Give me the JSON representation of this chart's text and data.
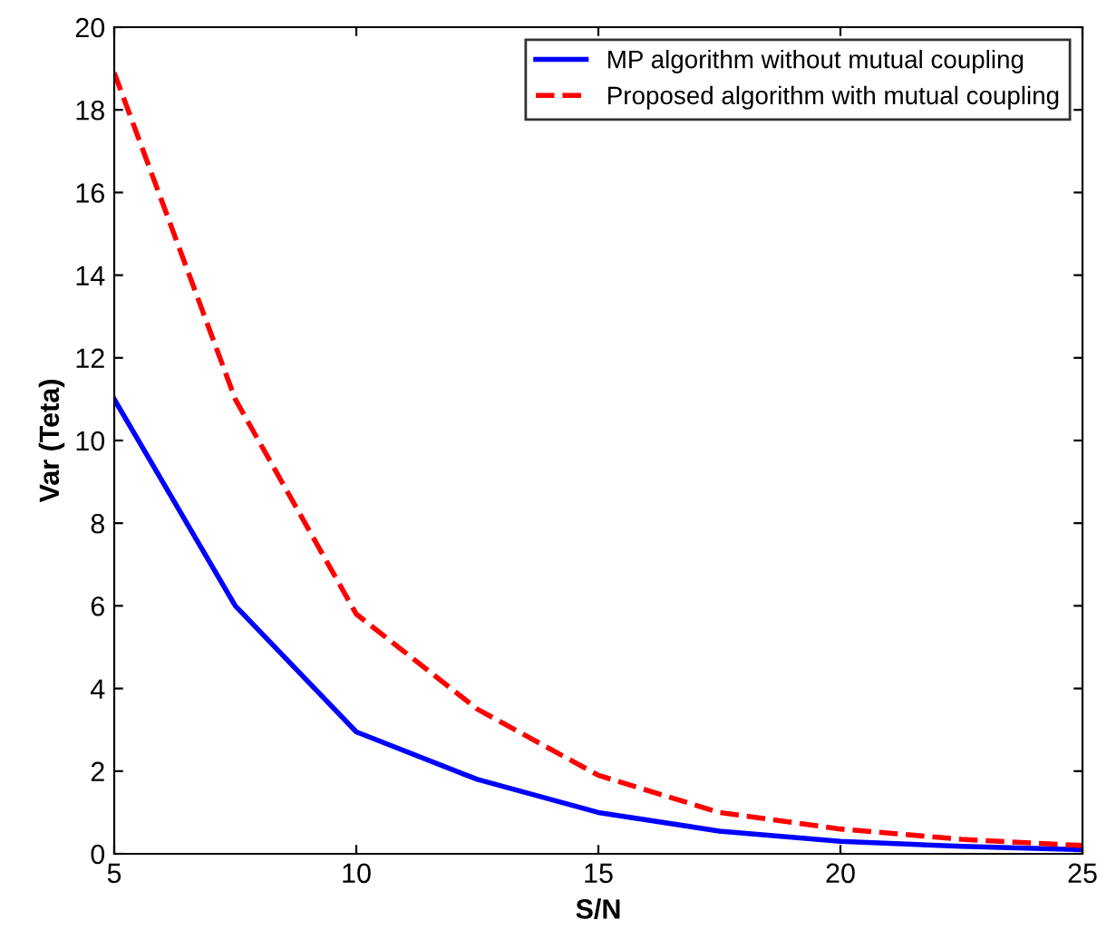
{
  "chart_data": {
    "type": "line",
    "xlabel": "S/N",
    "ylabel": "Var (Teta)",
    "x": [
      5,
      7.5,
      10,
      12.5,
      15,
      17.5,
      20,
      22.5,
      25
    ],
    "series": [
      {
        "name": "MP algorithm without mutual coupling",
        "color": "#0000ff",
        "line_style": "solid",
        "values": [
          11,
          6,
          2.95,
          1.8,
          1.0,
          0.55,
          0.3,
          0.18,
          0.1
        ]
      },
      {
        "name": "Proposed algorithm with mutual coupling",
        "color": "#ff0000",
        "line_style": "dashed",
        "values": [
          18.9,
          11,
          5.8,
          3.5,
          1.9,
          1.0,
          0.6,
          0.35,
          0.2
        ]
      }
    ],
    "xlim": [
      5,
      25
    ],
    "xticks": [
      5,
      10,
      15,
      20,
      25
    ],
    "ylim": [
      0,
      20
    ],
    "yticks": [
      0,
      2,
      4,
      6,
      8,
      10,
      12,
      14,
      16,
      18,
      20
    ],
    "grid": false,
    "legend": "top right",
    "marker": "none"
  }
}
